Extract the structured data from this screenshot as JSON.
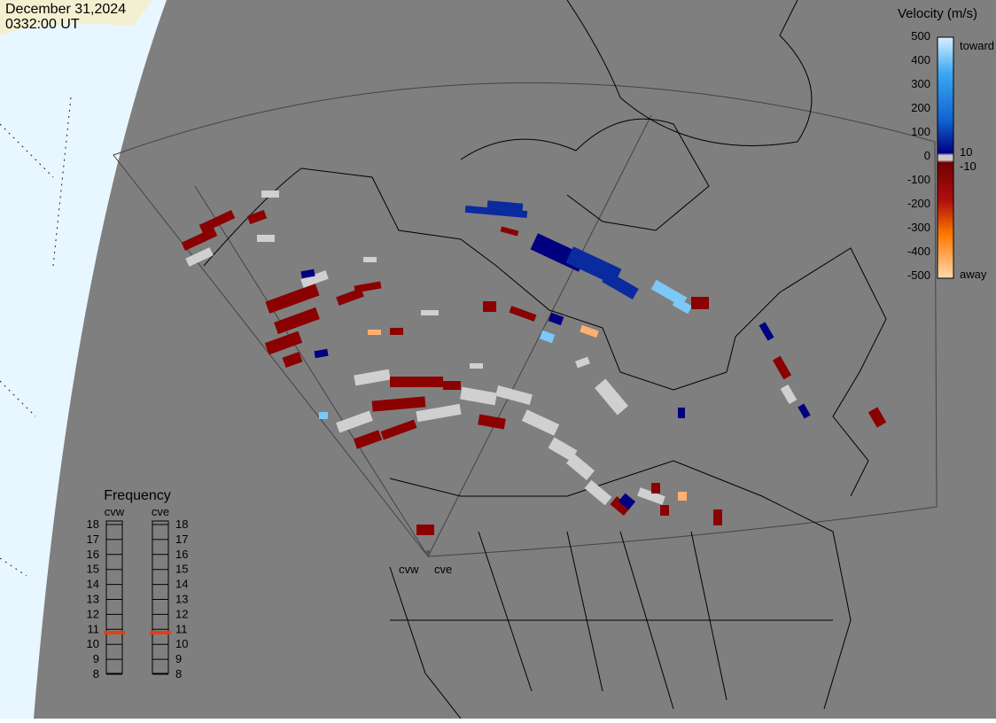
{
  "header": {
    "date": "December 31,2024",
    "time": "0332:00 UT"
  },
  "velocity_legend": {
    "title": "Velocity (m/s)",
    "ticks": [
      "500",
      "400",
      "300",
      "200",
      "100",
      "0",
      "-100",
      "-200",
      "-300",
      "-400",
      "-500"
    ],
    "toward": "toward",
    "away": "away",
    "inner_ticks": [
      "10",
      "-10"
    ]
  },
  "frequency_legend": {
    "title": "Frequency",
    "radars": [
      "cvw",
      "cve"
    ],
    "ticks": [
      "18",
      "17",
      "16",
      "15",
      "14",
      "13",
      "12",
      "11",
      "10",
      "9",
      "8"
    ]
  },
  "map": {
    "radar_labels": [
      "cvw",
      "cve"
    ]
  }
}
